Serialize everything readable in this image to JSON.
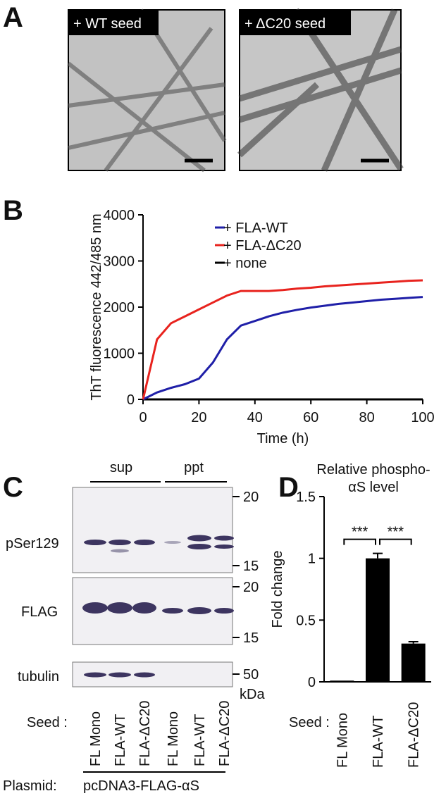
{
  "panel_labels": [
    "A",
    "B",
    "C",
    "D"
  ],
  "panel_a": {
    "images": [
      "+ WT seed",
      "+ ΔC20 seed"
    ]
  },
  "chart_data": [
    {
      "type": "line",
      "x_label": "Time (h)",
      "y_label": "ThT fluorescence 442/485 nm",
      "x": [
        0,
        5,
        10,
        15,
        20,
        25,
        30,
        35,
        40,
        45,
        50,
        55,
        60,
        65,
        70,
        75,
        80,
        85,
        90,
        95,
        100
      ],
      "series": [
        {
          "name": "+ FLA-WT",
          "color": "#1f1fa8",
          "values": [
            0,
            150,
            250,
            330,
            450,
            800,
            1300,
            1600,
            1700,
            1800,
            1880,
            1940,
            1990,
            2030,
            2070,
            2100,
            2130,
            2160,
            2180,
            2200,
            2220
          ]
        },
        {
          "name": "+ FLA-ΔC20",
          "color": "#e8231e",
          "values": [
            0,
            1300,
            1650,
            1800,
            1950,
            2100,
            2250,
            2350,
            2350,
            2350,
            2370,
            2400,
            2420,
            2450,
            2470,
            2490,
            2510,
            2530,
            2550,
            2570,
            2580
          ]
        },
        {
          "name": "+ none",
          "color": "#000000",
          "values": [
            0,
            0,
            0,
            0,
            0,
            0,
            0,
            0,
            0,
            0,
            0,
            0,
            0,
            0,
            0,
            0,
            0,
            0,
            0,
            0,
            0
          ]
        }
      ],
      "xlim": [
        0,
        100
      ],
      "xticks": [
        0,
        20,
        40,
        60,
        80,
        100
      ],
      "ylim": [
        0,
        4000
      ],
      "yticks": [
        0,
        1000,
        2000,
        3000,
        4000
      ],
      "legend": "upper right"
    },
    {
      "type": "bar",
      "title": "Relative phospho-αS level",
      "y_label": "Fold change",
      "x_label": "Seed :",
      "categories": [
        "FL Mono",
        "FLA-WT",
        "FLA-ΔC20"
      ],
      "values": [
        0.01,
        1.0,
        0.31
      ],
      "errors": [
        0,
        0.04,
        0.015
      ],
      "color": "#000000",
      "ylim": [
        0,
        1.5
      ],
      "yticks": [
        0,
        0.5,
        1,
        1.5
      ],
      "annotations": [
        "***",
        "***"
      ]
    }
  ],
  "panel_c": {
    "groups": [
      "sup",
      "ppt"
    ],
    "rows": [
      "pSer129",
      "FLAG",
      "tubulin"
    ],
    "markers": [
      "20",
      "15",
      "20",
      "15",
      "50"
    ],
    "marker_unit": "kDa",
    "seed_label": "Seed :",
    "lanes": [
      "FL Mono",
      "FLA-WT",
      "FLA-ΔC20",
      "FL Mono",
      "FLA-WT",
      "FLA-ΔC20"
    ],
    "plasmid_label": "Plasmid:",
    "plasmid": "pcDNA3-FLAG-αS"
  }
}
